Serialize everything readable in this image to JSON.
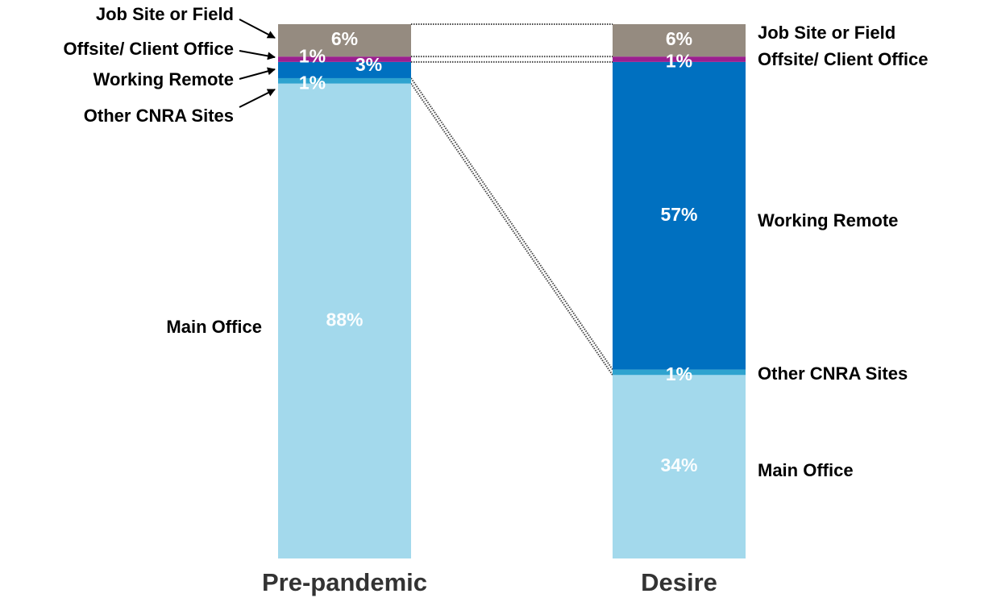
{
  "chart_data": {
    "type": "stacked_bar",
    "categories": [
      "Pre-pandemic",
      "Desire"
    ],
    "series": [
      {
        "name": "Main Office",
        "color": "#a3d9ec",
        "values": [
          88,
          34
        ],
        "value_labels": [
          "88%",
          "34%"
        ]
      },
      {
        "name": "Other CNRA Sites",
        "color": "#2ea3cf",
        "values": [
          1,
          1
        ],
        "value_labels": [
          "1%",
          "1%"
        ]
      },
      {
        "name": "Working Remote",
        "color": "#0070c0",
        "values": [
          3,
          57
        ],
        "value_labels": [
          "3%",
          "57%"
        ]
      },
      {
        "name": "Offsite/ Client Office",
        "color": "#9b1f8f",
        "values": [
          1,
          1
        ],
        "value_labels": [
          "1%",
          "1%"
        ]
      },
      {
        "name": "Job Site or Field",
        "color": "#958b80",
        "values": [
          6,
          6
        ],
        "value_labels": [
          "6%",
          "6%"
        ]
      }
    ]
  }
}
